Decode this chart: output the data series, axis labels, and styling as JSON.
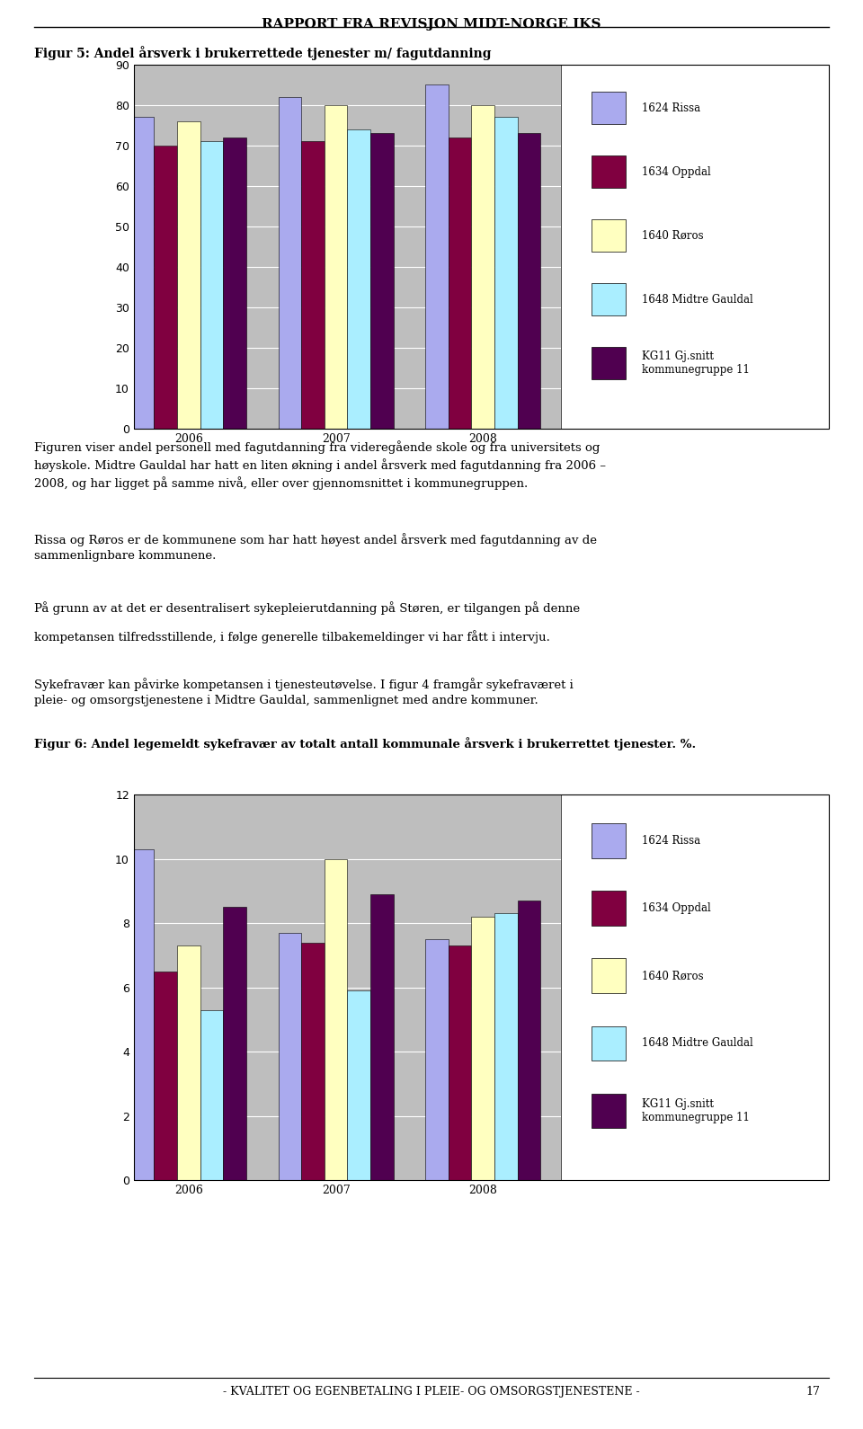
{
  "page_title": "RAPPORT FRA REVISJON MIDT-NORGE IKS",
  "footer": "- KVALITET OG EGENBETALING I PLEIE- OG OMSORGSTJENESTENE -",
  "footer_page": "17",
  "fig5_title": "Figur 5: Andel årsverk i brukerrettede tjenester m/ fagutdanning",
  "fig5_years": [
    "2006",
    "2007",
    "2008"
  ],
  "fig5_series": [
    {
      "label": "1624 Rissa",
      "color": "#AAAAEE",
      "values": [
        77,
        82,
        85
      ]
    },
    {
      "label": "1634 Oppdal",
      "color": "#800040",
      "values": [
        70,
        71,
        72
      ]
    },
    {
      "label": "1640 Røros",
      "color": "#FFFFC0",
      "values": [
        76,
        80,
        80
      ]
    },
    {
      "label": "1648 Midtre Gauldal",
      "color": "#AAEEFF",
      "values": [
        71,
        74,
        77
      ]
    },
    {
      "label": "KG11 Gj.snitt kommunegruppe 11",
      "color": "#500050",
      "values": [
        72,
        73,
        73
      ]
    }
  ],
  "fig5_ylim": [
    0,
    90
  ],
  "fig5_yticks": [
    0,
    10,
    20,
    30,
    40,
    50,
    60,
    70,
    80,
    90
  ],
  "fig6_title": "Figur 6: Andel legemeldt sykefravær av totalt antall kommunale årsverk i brukerrettet tjenester. %.",
  "fig6_years": [
    "2006",
    "2007",
    "2008"
  ],
  "fig6_series": [
    {
      "label": "1624 Rissa",
      "color": "#AAAAEE",
      "values": [
        10.3,
        7.7,
        7.5
      ]
    },
    {
      "label": "1634 Oppdal",
      "color": "#800040",
      "values": [
        6.5,
        7.4,
        7.3
      ]
    },
    {
      "label": "1640 Røros",
      "color": "#FFFFC0",
      "values": [
        7.3,
        10.0,
        8.2
      ]
    },
    {
      "label": "1648 Midtre Gauldal",
      "color": "#AAEEFF",
      "values": [
        5.3,
        5.9,
        8.3
      ]
    },
    {
      "label": "KG11 Gj.snitt kommunegruppe 11",
      "color": "#500050",
      "values": [
        8.5,
        8.9,
        8.7
      ]
    }
  ],
  "fig6_ylim": [
    0,
    12
  ],
  "fig6_yticks": [
    0,
    2,
    4,
    6,
    8,
    10,
    12
  ],
  "bg_color": "#ffffff",
  "plot_bg_color": "#BEBEBE",
  "bar_edge_color": "#000000",
  "legend_labels_short": [
    "1624 Rissa",
    "1634 Oppdal",
    "1640 Røros",
    "1648 Midtre Gauldal",
    "KG11 Gj.snitt\nkommunegruppe 11"
  ]
}
